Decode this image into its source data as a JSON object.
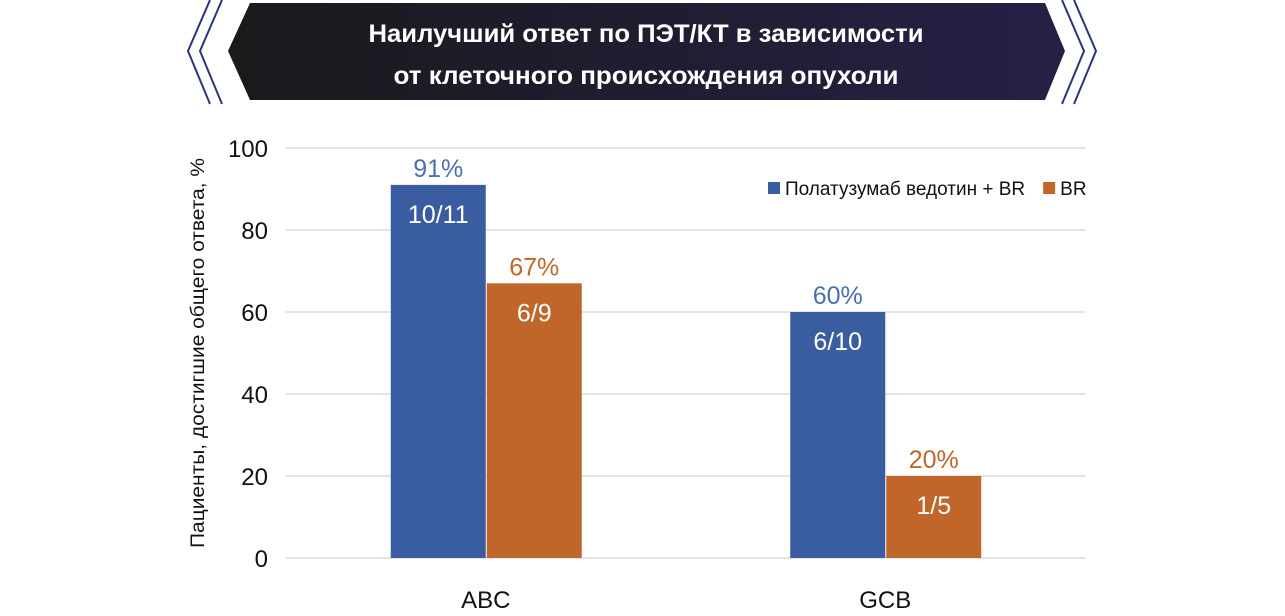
{
  "chart_data": {
    "type": "bar",
    "title": [
      "Наилучший ответ по ПЭТ/КТ в зависимости",
      "от клеточного происхождения опухоли"
    ],
    "xlabel": "",
    "ylabel": "Пациенты, достигшие общего ответа, %",
    "ylim": [
      0,
      100
    ],
    "yticks": [
      0,
      20,
      40,
      60,
      80,
      100
    ],
    "grid": true,
    "legend_position": "top-right",
    "categories": [
      "ABC",
      "GCB"
    ],
    "series": [
      {
        "name": "Полатузумаб ведотин + BR",
        "color": "#3A5CA0",
        "label_color": "#4A6FB5",
        "values": [
          91,
          60
        ],
        "labels": [
          "91%",
          "60%"
        ],
        "fractions": [
          "10/11",
          "6/10"
        ]
      },
      {
        "name": "BR",
        "color": "#C0662A",
        "label_color": "#C0662A",
        "values": [
          67,
          20
        ],
        "labels": [
          "67%",
          "20%"
        ],
        "fractions": [
          "6/9",
          "1/5"
        ]
      }
    ]
  }
}
